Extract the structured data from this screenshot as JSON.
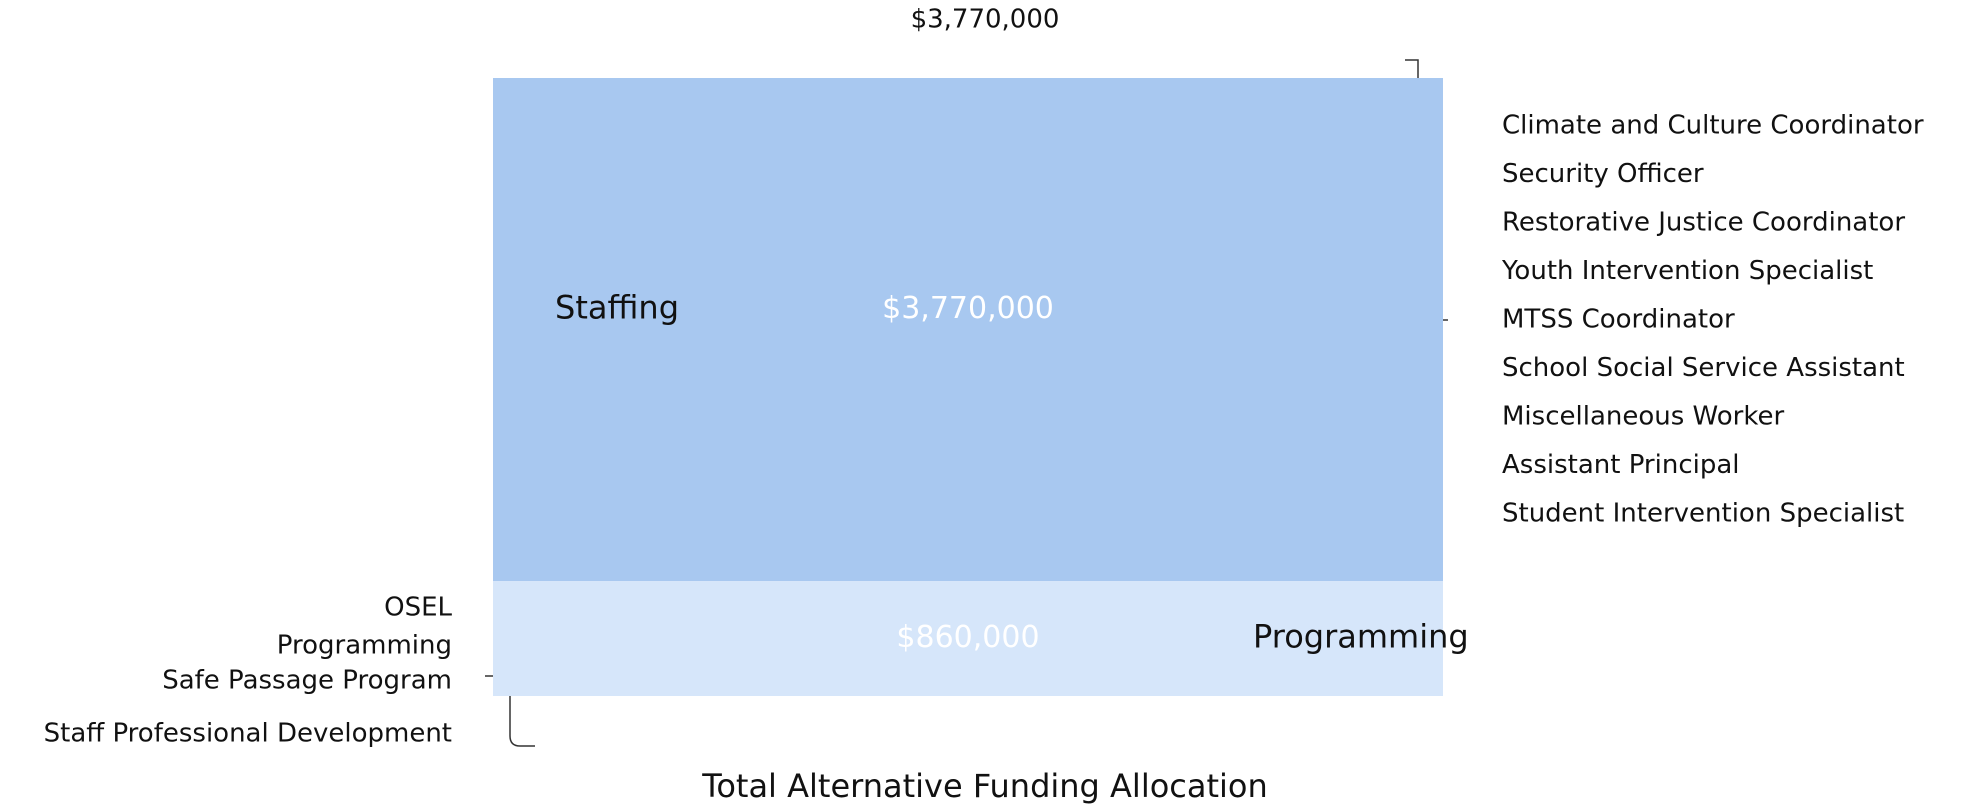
{
  "chart_data": {
    "type": "block",
    "title": "Total Alternative Funding Allocation",
    "groups": [
      {
        "name": "Staffing",
        "value": 3770000,
        "value_label": "$3,770,000",
        "color": "#a8c8f0",
        "items": [
          "Climate and Culture Coordinator",
          "Security Officer",
          "Restorative Justice Coordinator",
          "Youth Intervention Specialist",
          "MTSS Coordinator",
          "School Social Service Assistant",
          "Miscellaneous Worker",
          "Assistant Principal",
          "Student Intervention Specialist"
        ]
      },
      {
        "name": "Programming",
        "value": 860000,
        "value_label": "$860,000",
        "color": "#d6e6fa",
        "items": [
          "OSEL",
          "Programming",
          "Safe Passage Program",
          "Staff Professional Development"
        ]
      }
    ]
  }
}
